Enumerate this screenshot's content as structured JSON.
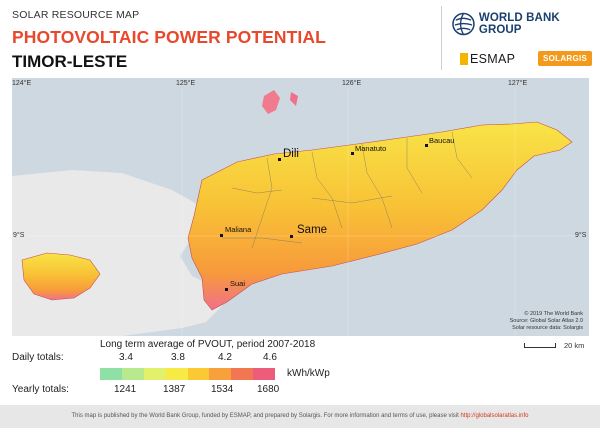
{
  "header": {
    "subtitle": "SOLAR RESOURCE MAP",
    "title": "PHOTOVOLTAIC POWER POTENTIAL",
    "country": "TIMOR-LESTE"
  },
  "logos": {
    "world_bank": "WORLD BANK GROUP",
    "esmap": "ESMAP",
    "solargis": "SOLARGIS"
  },
  "map": {
    "lon_ticks": [
      "124°E",
      "125°E",
      "126°E",
      "127°E"
    ],
    "lat_tick": "9°S",
    "places": {
      "dili": "Dili",
      "same": "Same",
      "manatuto": "Manatuto",
      "baucau": "Baucau",
      "maliana": "Maliana",
      "suai": "Suai"
    },
    "credits": [
      "© 2019 The World Bank",
      "Source: Global Solar Atlas 2.0",
      "Solar resource data: Solargis"
    ],
    "scale_label": "20 km",
    "colors": {
      "sea": "#cdd8e1",
      "other_land": "#e9e9e9"
    }
  },
  "legend": {
    "caption": "Long term average of PVOUT, period 2007-2018",
    "daily_label": "Daily totals:",
    "daily_values": [
      "3.4",
      "3.8",
      "4.2",
      "4.6"
    ],
    "yearly_label": "Yearly totals:",
    "yearly_values": [
      "1241",
      "1387",
      "1534",
      "1680"
    ],
    "unit": "kWh/kWp",
    "colors": [
      "#8ee0a5",
      "#b7ea8f",
      "#e3f06c",
      "#f8ea44",
      "#fac933",
      "#f7a03c",
      "#f27652",
      "#ee5c7c"
    ]
  },
  "footer": {
    "text": "This map is published by the World Bank Group, funded by ESMAP, and prepared by Solargis. For more information and terms of use, please visit",
    "link": "http://globalsolaratlas.info"
  }
}
